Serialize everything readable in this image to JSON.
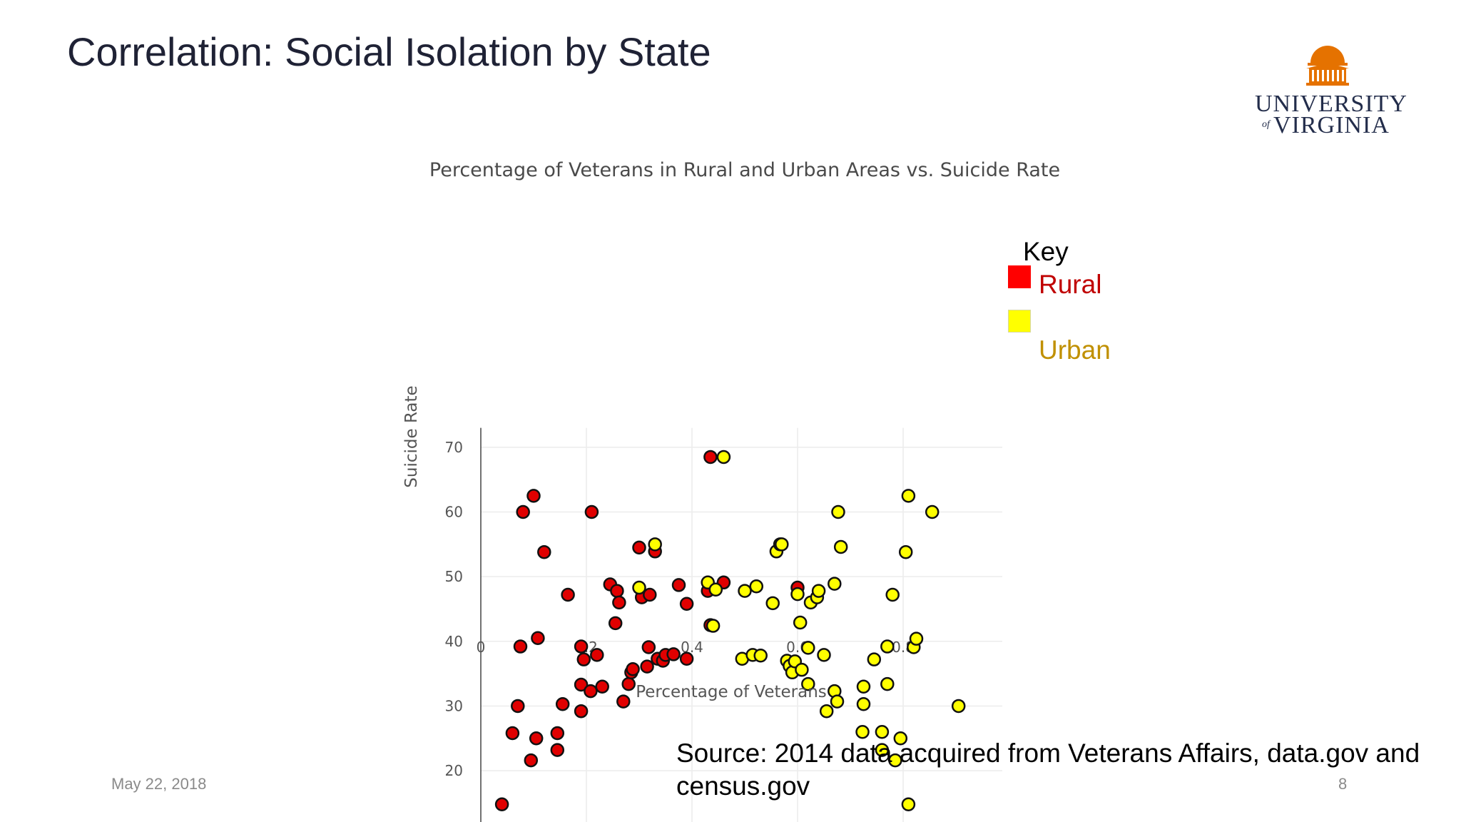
{
  "slide": {
    "title": "Correlation: Social Isolation by State",
    "date": "May 22, 2018",
    "page_number": "8",
    "source": "Source: 2014 data acquired from Veterans Affairs, data.gov and census.gov"
  },
  "logo": {
    "line1": "UNIVERSITY",
    "of": "of",
    "line2": "VIRGINIA",
    "color": "#e57200",
    "text_color": "#232d4b"
  },
  "legend": {
    "title": "Key",
    "rural_label": "Rural",
    "urban_label": "Urban"
  },
  "chart_data": {
    "type": "scatter",
    "title": "Percentage of Veterans in Rural and Urban Areas vs. Suicide Rate",
    "xlabel": "Percentage of Veterans",
    "ylabel": "Suicide Rate",
    "xlim": [
      0,
      0.98
    ],
    "ylim": [
      10,
      73
    ],
    "xticks": [
      0,
      0.2,
      0.4,
      0.6,
      0.8
    ],
    "xtick_labels": [
      "0",
      "0.2",
      "0.4",
      "0.6",
      "0.8"
    ],
    "yticks": [
      20,
      30,
      40,
      50,
      60,
      70
    ],
    "ytick_labels": [
      "20",
      "30",
      "40",
      "50",
      "60",
      "70"
    ],
    "grid": true,
    "series": [
      {
        "name": "Rural",
        "color": "#e00000",
        "points": [
          [
            0.04,
            14.8
          ],
          [
            0.06,
            25.8
          ],
          [
            0.07,
            30.0
          ],
          [
            0.075,
            39.2
          ],
          [
            0.08,
            60.0
          ],
          [
            0.095,
            21.6
          ],
          [
            0.1,
            62.5
          ],
          [
            0.105,
            25.0
          ],
          [
            0.108,
            40.5
          ],
          [
            0.12,
            53.8
          ],
          [
            0.145,
            23.2
          ],
          [
            0.145,
            25.8
          ],
          [
            0.155,
            30.3
          ],
          [
            0.165,
            47.2
          ],
          [
            0.19,
            33.3
          ],
          [
            0.19,
            39.2
          ],
          [
            0.19,
            29.2
          ],
          [
            0.195,
            37.2
          ],
          [
            0.208,
            32.3
          ],
          [
            0.21,
            60.0
          ],
          [
            0.22,
            37.9
          ],
          [
            0.23,
            33.0
          ],
          [
            0.245,
            48.8
          ],
          [
            0.255,
            42.8
          ],
          [
            0.258,
            47.8
          ],
          [
            0.262,
            46.0
          ],
          [
            0.27,
            30.7
          ],
          [
            0.28,
            33.4
          ],
          [
            0.285,
            35.2
          ],
          [
            0.288,
            35.7
          ],
          [
            0.3,
            54.5
          ],
          [
            0.305,
            46.8
          ],
          [
            0.315,
            36.1
          ],
          [
            0.318,
            39.1
          ],
          [
            0.32,
            47.2
          ],
          [
            0.33,
            53.9
          ],
          [
            0.335,
            37.3
          ],
          [
            0.345,
            37.0
          ],
          [
            0.35,
            37.9
          ],
          [
            0.365,
            38.0
          ],
          [
            0.375,
            48.7
          ],
          [
            0.39,
            37.3
          ],
          [
            0.39,
            45.8
          ],
          [
            0.43,
            47.8
          ],
          [
            0.435,
            42.5
          ],
          [
            0.435,
            68.5
          ],
          [
            0.46,
            49.1
          ],
          [
            0.6,
            48.3
          ]
        ]
      },
      {
        "name": "Urban",
        "color": "#ffff00",
        "points": [
          [
            0.3,
            48.3
          ],
          [
            0.33,
            55.0
          ],
          [
            0.43,
            49.1
          ],
          [
            0.44,
            42.4
          ],
          [
            0.445,
            48.0
          ],
          [
            0.46,
            68.5
          ],
          [
            0.495,
            37.3
          ],
          [
            0.5,
            47.8
          ],
          [
            0.515,
            37.9
          ],
          [
            0.522,
            48.5
          ],
          [
            0.53,
            37.8
          ],
          [
            0.553,
            45.9
          ],
          [
            0.56,
            53.9
          ],
          [
            0.567,
            55.0
          ],
          [
            0.57,
            55.0
          ],
          [
            0.58,
            37.0
          ],
          [
            0.585,
            36.2
          ],
          [
            0.59,
            35.2
          ],
          [
            0.595,
            36.9
          ],
          [
            0.6,
            47.3
          ],
          [
            0.605,
            42.9
          ],
          [
            0.608,
            35.6
          ],
          [
            0.62,
            33.4
          ],
          [
            0.62,
            39.0
          ],
          [
            0.625,
            46.0
          ],
          [
            0.637,
            46.8
          ],
          [
            0.64,
            47.8
          ],
          [
            0.65,
            37.9
          ],
          [
            0.655,
            29.2
          ],
          [
            0.67,
            48.9
          ],
          [
            0.67,
            32.3
          ],
          [
            0.675,
            30.7
          ],
          [
            0.677,
            60.0
          ],
          [
            0.682,
            54.6
          ],
          [
            0.723,
            26.0
          ],
          [
            0.725,
            33.0
          ],
          [
            0.725,
            30.3
          ],
          [
            0.745,
            37.2
          ],
          [
            0.76,
            26.0
          ],
          [
            0.76,
            23.2
          ],
          [
            0.77,
            39.2
          ],
          [
            0.77,
            33.4
          ],
          [
            0.78,
            47.2
          ],
          [
            0.785,
            21.6
          ],
          [
            0.795,
            25.0
          ],
          [
            0.805,
            53.8
          ],
          [
            0.81,
            14.8
          ],
          [
            0.81,
            62.5
          ],
          [
            0.82,
            39.1
          ],
          [
            0.825,
            40.4
          ],
          [
            0.855,
            60.0
          ],
          [
            0.905,
            30.0
          ]
        ]
      }
    ]
  }
}
